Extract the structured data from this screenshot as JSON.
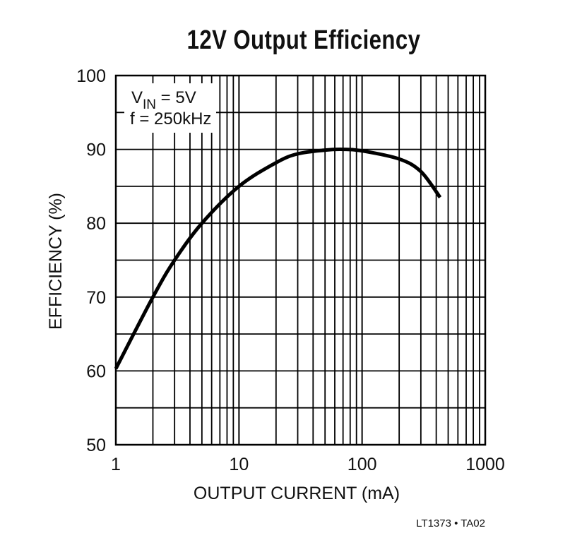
{
  "chart_data": {
    "type": "line",
    "title": "12V Output Efficiency",
    "xlabel": "OUTPUT CURRENT (mA)",
    "ylabel": "EFFICIENCY (%)",
    "xscale": "log",
    "xlim": [
      1,
      1000
    ],
    "ylim": [
      50,
      100
    ],
    "x_ticks": [
      "1",
      "10",
      "100",
      "1000"
    ],
    "y_ticks": [
      "50",
      "60",
      "70",
      "80",
      "90",
      "100"
    ],
    "grid": true,
    "annotations": [
      "VIN = 5V",
      "f = 250kHz"
    ],
    "series": [
      {
        "name": "Efficiency",
        "x": [
          1,
          2,
          3,
          5,
          10,
          20,
          30,
          50,
          70,
          100,
          200,
          300,
          430
        ],
        "y": [
          60.3,
          70.0,
          75.0,
          80.0,
          85.0,
          88.2,
          89.4,
          89.9,
          90.0,
          89.8,
          88.7,
          87.0,
          83.5
        ]
      }
    ],
    "footer": "LT1373 • TA02"
  },
  "labels": {
    "title": "12V Output Efficiency",
    "xlabel": "OUTPUT CURRENT (mA)",
    "ylabel": "EFFICIENCY (%)",
    "vin_prefix": "V",
    "vin_sub": "IN",
    "vin_suffix": " = 5V",
    "freq": "f = 250kHz",
    "footer": "LT1373 • TA02"
  }
}
